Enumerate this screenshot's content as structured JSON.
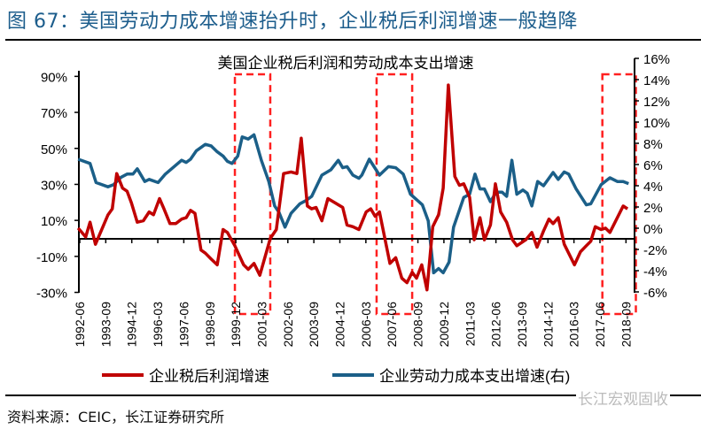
{
  "figure_title": "图 67：美国劳动力成本增速抬升时，企业税后利润增速一般趋降",
  "source": "资料来源：CEIC，长江证券研究所",
  "watermark": "长江宏观固收",
  "colors": {
    "profit": "#c00000",
    "labor": "#1b5f88",
    "highlight": "#ff2020",
    "title": "#1c5d8c"
  },
  "chart_data": {
    "type": "line",
    "title": "美国企业税后利润和劳动成本支出增速",
    "xlabel": "",
    "ylabel": "",
    "x_tick_labels": [
      "1992-06",
      "1993-09",
      "1994-12",
      "1996-03",
      "1997-06",
      "1998-09",
      "1999-12",
      "2001-03",
      "2002-06",
      "2003-09",
      "2004-12",
      "2006-03",
      "2007-06",
      "2008-09",
      "2009-12",
      "2011-03",
      "2012-06",
      "2013-09",
      "2014-12",
      "2016-03",
      "2017-06",
      "2018-09"
    ],
    "x_range": [
      1992.375,
      2018.875
    ],
    "left_axis": {
      "ylim": [
        -30,
        90
      ],
      "ticks": [
        -30,
        -10,
        10,
        30,
        50,
        70,
        90
      ],
      "labels": [
        "-30%",
        "-10%",
        "10%",
        "30%",
        "50%",
        "70%",
        "90%"
      ]
    },
    "right_axis": {
      "ylim": [
        -6,
        16
      ],
      "ticks": [
        -6,
        -4,
        -2,
        0,
        2,
        4,
        6,
        8,
        10,
        12,
        14,
        16
      ],
      "labels": [
        "-6%",
        "-4%",
        "-2%",
        "0%",
        "2%",
        "4%",
        "6%",
        "8%",
        "10%",
        "12%",
        "14%",
        "16%"
      ]
    },
    "legend": {
      "position": "bottom",
      "entries": [
        "企业税后利润增速",
        "企业劳动力成本支出增速(右)"
      ]
    },
    "highlight_periods": [
      [
        1999.83,
        2001.53
      ],
      [
        2006.64,
        2008.35
      ],
      [
        2017.49,
        2019.1
      ]
    ],
    "series": [
      {
        "name": "企业税后利润增速",
        "axis": "left",
        "points": [
          [
            1992.3,
            5.7
          ],
          [
            1992.66,
            0.8
          ],
          [
            1992.87,
            9
          ],
          [
            1993.13,
            -3.3
          ],
          [
            1993.73,
            13
          ],
          [
            1993.94,
            16.4
          ],
          [
            1994.15,
            36
          ],
          [
            1994.43,
            27.9
          ],
          [
            1994.65,
            26.2
          ],
          [
            1994.86,
            19.7
          ],
          [
            1995.14,
            9
          ],
          [
            1995.43,
            9.8
          ],
          [
            1995.71,
            14.7
          ],
          [
            1995.92,
            13.1
          ],
          [
            1996.21,
            22.1
          ],
          [
            1996.42,
            16.4
          ],
          [
            1996.71,
            8.2
          ],
          [
            1996.99,
            8.2
          ],
          [
            1997.27,
            10.7
          ],
          [
            1997.49,
            11.5
          ],
          [
            1997.7,
            15.6
          ],
          [
            1997.91,
            13.9
          ],
          [
            1998.2,
            -6.5
          ],
          [
            1998.41,
            -8.2
          ],
          [
            1998.69,
            -11.5
          ],
          [
            1998.98,
            -14.7
          ],
          [
            1999.26,
            4.9
          ],
          [
            1999.47,
            3.3
          ],
          [
            1999.83,
            -4.1
          ],
          [
            2000.25,
            -14.7
          ],
          [
            2000.47,
            -17.2
          ],
          [
            2000.75,
            -13.9
          ],
          [
            2001.03,
            -20.5
          ],
          [
            2001.53,
            0
          ],
          [
            2001.82,
            4.9
          ],
          [
            2002.17,
            36
          ],
          [
            2002.53,
            36.9
          ],
          [
            2002.81,
            36
          ],
          [
            2003.02,
            55.7
          ],
          [
            2003.31,
            18
          ],
          [
            2003.52,
            16.4
          ],
          [
            2003.73,
            17.2
          ],
          [
            2004.01,
            9.8
          ],
          [
            2004.3,
            22.1
          ],
          [
            2004.65,
            19.7
          ],
          [
            2005.01,
            17.2
          ],
          [
            2005.22,
            7.4
          ],
          [
            2005.5,
            6.5
          ],
          [
            2005.79,
            4.9
          ],
          [
            2006.14,
            14.7
          ],
          [
            2006.36,
            16.4
          ],
          [
            2006.57,
            12.3
          ],
          [
            2006.78,
            14.7
          ],
          [
            2007.28,
            -13.9
          ],
          [
            2007.56,
            -10.7
          ],
          [
            2007.85,
            -22.1
          ],
          [
            2008.1,
            -24.6
          ],
          [
            2008.35,
            -18.8
          ],
          [
            2008.56,
            -22.1
          ],
          [
            2008.81,
            -14.7
          ],
          [
            2009.06,
            -28.6
          ],
          [
            2009.34,
            6.5
          ],
          [
            2009.62,
            13.1
          ],
          [
            2009.84,
            27.9
          ],
          [
            2010.09,
            85.2
          ],
          [
            2010.4,
            34.4
          ],
          [
            2010.62,
            29.5
          ],
          [
            2010.83,
            30.3
          ],
          [
            2011.11,
            22.9
          ],
          [
            2011.33,
            -0.8
          ],
          [
            2011.61,
            11.5
          ],
          [
            2011.82,
            -0.8
          ],
          [
            2012.11,
            7.4
          ],
          [
            2012.35,
            30.3
          ],
          [
            2012.6,
            14.7
          ],
          [
            2012.89,
            9
          ],
          [
            2013.17,
            -0.8
          ],
          [
            2013.38,
            -4.1
          ],
          [
            2013.81,
            -0.8
          ],
          [
            2014.1,
            3.3
          ],
          [
            2014.35,
            -4.9
          ],
          [
            2014.66,
            4.1
          ],
          [
            2014.92,
            10.7
          ],
          [
            2015.12,
            8.2
          ],
          [
            2015.37,
            11.5
          ],
          [
            2015.66,
            -3.3
          ],
          [
            2016.15,
            -14.7
          ],
          [
            2016.44,
            -7.4
          ],
          [
            2016.72,
            -4.1
          ],
          [
            2016.93,
            -1.6
          ],
          [
            2017.15,
            6.5
          ],
          [
            2017.43,
            4.9
          ],
          [
            2017.64,
            5.7
          ],
          [
            2017.85,
            3.3
          ],
          [
            2018.49,
            18
          ],
          [
            2018.7,
            16.4
          ]
        ]
      },
      {
        "name": "企业劳动力成本支出增速(右)",
        "axis": "right",
        "points": [
          [
            1992.3,
            6.5
          ],
          [
            1992.87,
            6.1
          ],
          [
            1993.16,
            4.3
          ],
          [
            1993.73,
            3.9
          ],
          [
            1994.0,
            4.1
          ],
          [
            1994.36,
            4.8
          ],
          [
            1994.65,
            5.1
          ],
          [
            1994.93,
            5.1
          ],
          [
            1995.14,
            5.6
          ],
          [
            1995.5,
            4.4
          ],
          [
            1995.71,
            4.6
          ],
          [
            1996.14,
            4.3
          ],
          [
            1996.49,
            5.1
          ],
          [
            1996.85,
            5.7
          ],
          [
            1997.27,
            6.4
          ],
          [
            1997.49,
            6.2
          ],
          [
            1997.7,
            6.5
          ],
          [
            1997.98,
            7.3
          ],
          [
            1998.41,
            7.9
          ],
          [
            1998.69,
            7.75
          ],
          [
            1998.98,
            7.2
          ],
          [
            1999.26,
            6.8
          ],
          [
            1999.47,
            6.3
          ],
          [
            1999.69,
            6.1
          ],
          [
            1999.97,
            6.8
          ],
          [
            2000.18,
            8.6
          ],
          [
            2000.47,
            8.4
          ],
          [
            2000.75,
            8.8
          ],
          [
            2001.1,
            6.4
          ],
          [
            2001.46,
            4.4
          ],
          [
            2001.74,
            2.1
          ],
          [
            2001.95,
            1.5
          ],
          [
            2002.24,
            0.1
          ],
          [
            2002.53,
            1.4
          ],
          [
            2002.95,
            2.3
          ],
          [
            2003.24,
            2.6
          ],
          [
            2003.52,
            3.0
          ],
          [
            2004.01,
            5.0
          ],
          [
            2004.44,
            5.5
          ],
          [
            2004.8,
            6.4
          ],
          [
            2005.01,
            5.7
          ],
          [
            2005.22,
            5.8
          ],
          [
            2005.5,
            5.0
          ],
          [
            2005.79,
            4.7
          ],
          [
            2005.93,
            5.0
          ],
          [
            2006.29,
            6.5
          ],
          [
            2006.78,
            5.0
          ],
          [
            2007.21,
            5.8
          ],
          [
            2007.56,
            5.7
          ],
          [
            2007.92,
            5.1
          ],
          [
            2008.27,
            3.2
          ],
          [
            2008.84,
            2.2
          ],
          [
            2009.12,
            0.7
          ],
          [
            2009.38,
            -4.2
          ],
          [
            2009.62,
            -3.8
          ],
          [
            2009.84,
            -4.2
          ],
          [
            2010.12,
            -3.2
          ],
          [
            2010.34,
            0.1
          ],
          [
            2010.83,
            2.9
          ],
          [
            2011.11,
            3.2
          ],
          [
            2011.37,
            5.1
          ],
          [
            2011.61,
            3.7
          ],
          [
            2011.82,
            3.7
          ],
          [
            2012.11,
            2.5
          ],
          [
            2012.39,
            3.4
          ],
          [
            2012.67,
            3.4
          ],
          [
            2012.89,
            3.0
          ],
          [
            2013.14,
            6.4
          ],
          [
            2013.38,
            3.2
          ],
          [
            2013.67,
            3.6
          ],
          [
            2013.88,
            3.3
          ],
          [
            2014.1,
            2.1
          ],
          [
            2014.38,
            4.4
          ],
          [
            2014.66,
            4.0
          ],
          [
            2015.12,
            5.25
          ],
          [
            2015.37,
            4.6
          ],
          [
            2015.66,
            5.3
          ],
          [
            2015.87,
            5.1
          ],
          [
            2016.23,
            3.7
          ],
          [
            2016.72,
            2.2
          ],
          [
            2016.93,
            2.3
          ],
          [
            2017.43,
            4.1
          ],
          [
            2017.85,
            4.75
          ],
          [
            2018.21,
            4.4
          ],
          [
            2018.49,
            4.4
          ],
          [
            2018.75,
            4.2
          ]
        ]
      }
    ]
  }
}
